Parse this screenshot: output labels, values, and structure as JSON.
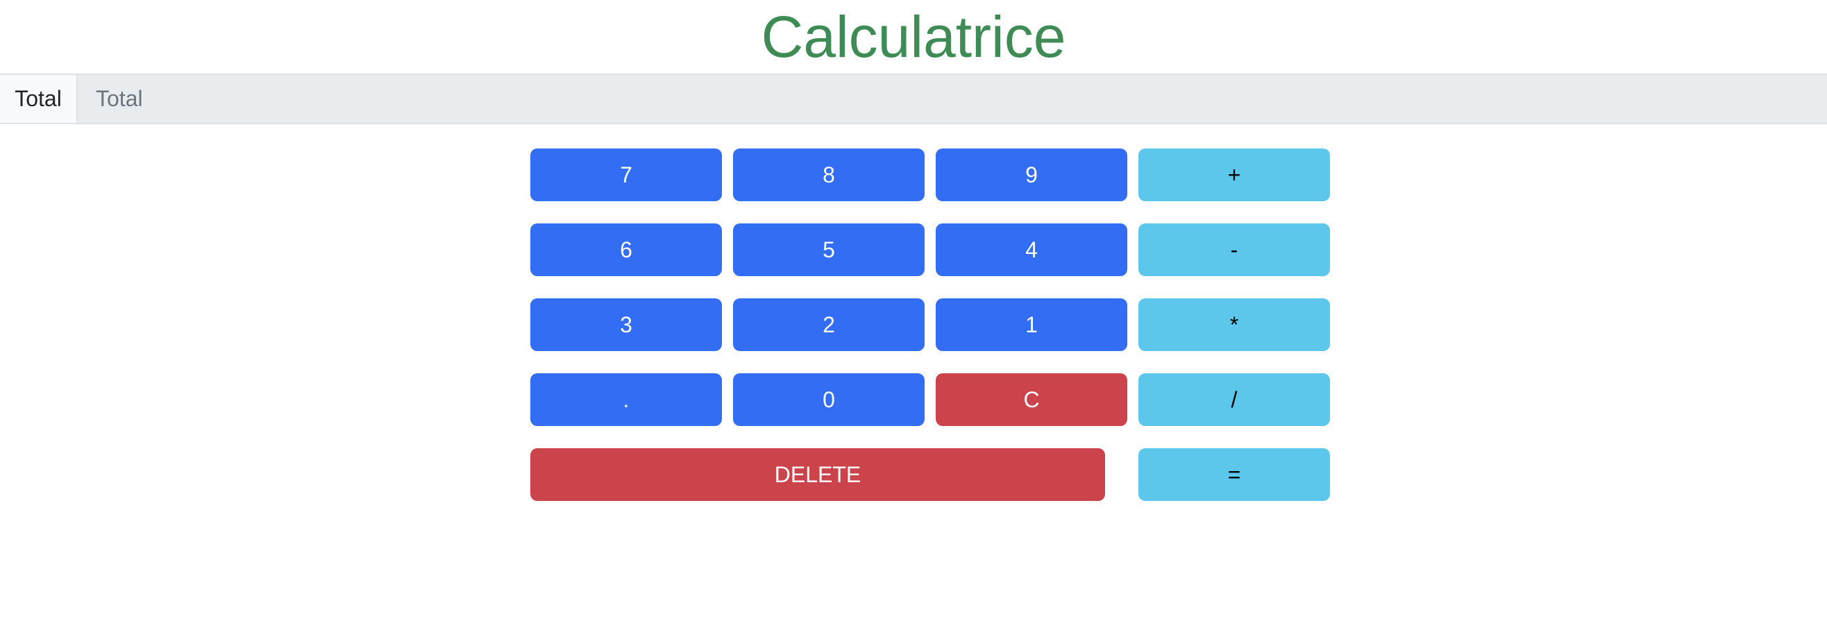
{
  "header": {
    "title": "Calculatrice"
  },
  "total": {
    "label": "Total",
    "placeholder": "Total"
  },
  "keys": {
    "seven": "7",
    "eight": "8",
    "nine": "9",
    "plus": "+",
    "six": "6",
    "five": "5",
    "four": "4",
    "minus": "-",
    "three": "3",
    "two": "2",
    "one": "1",
    "multiply": "*",
    "dot": ".",
    "zero": "0",
    "clear": "C",
    "divide": "/",
    "delete": "DELETE",
    "equals": "="
  },
  "colors": {
    "title": "#3f8b56",
    "primary": "#336df4",
    "danger": "#cc444b",
    "info": "#5dc7eb"
  }
}
